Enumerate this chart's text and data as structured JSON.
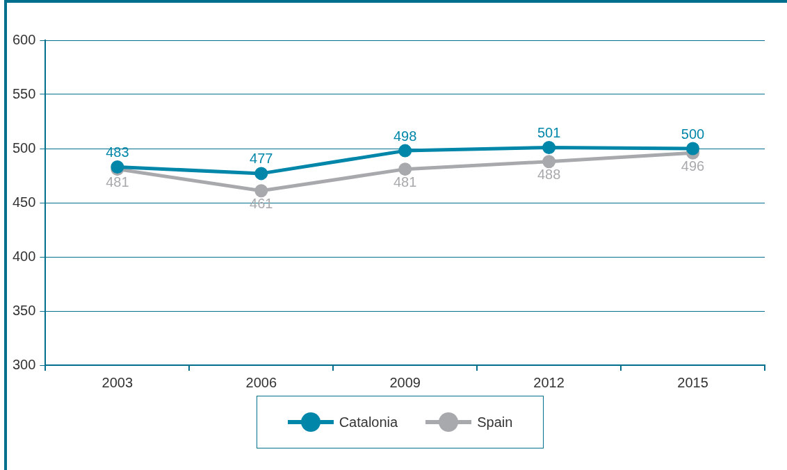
{
  "chart_data": {
    "type": "line",
    "categories": [
      "2003",
      "2006",
      "2009",
      "2012",
      "2015"
    ],
    "series": [
      {
        "name": "Catalonia",
        "color": "#0086a8",
        "values": [
          483,
          477,
          498,
          501,
          500
        ]
      },
      {
        "name": "Spain",
        "color": "#a7a9ac",
        "values": [
          481,
          461,
          481,
          488,
          496
        ]
      }
    ],
    "ylim": [
      300,
      600
    ],
    "yticks": [
      300,
      350,
      400,
      450,
      500,
      550,
      600
    ],
    "grid": "y",
    "legend": "bottom",
    "marker": "circle",
    "line_style": "solid",
    "data_labels": true
  }
}
